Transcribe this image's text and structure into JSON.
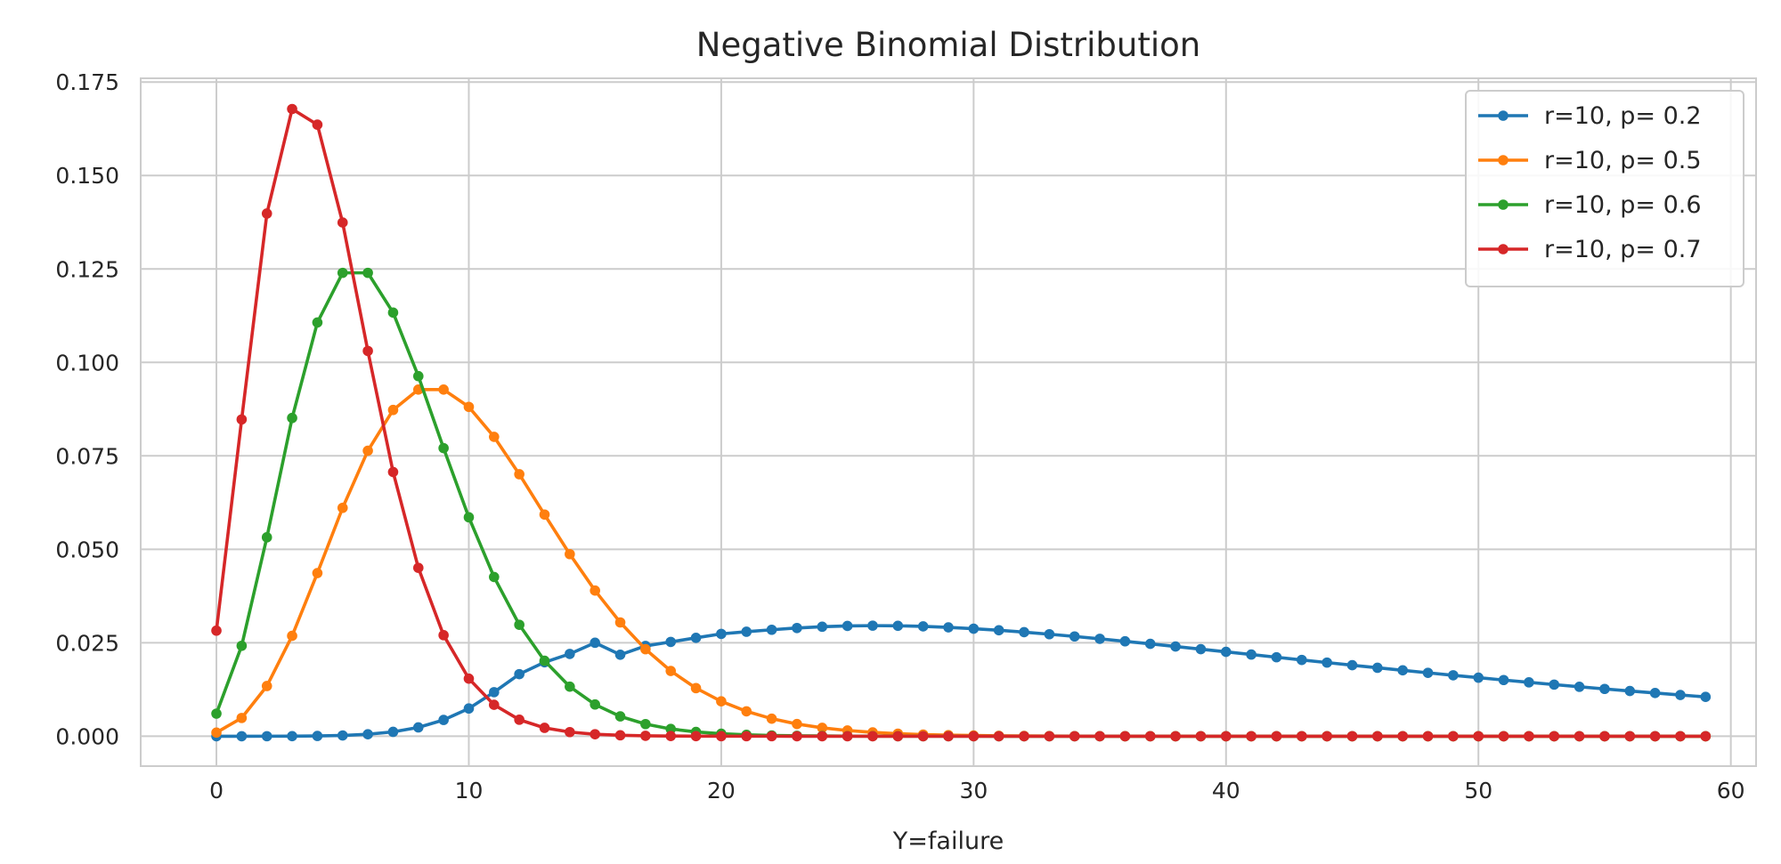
{
  "chart_data": {
    "type": "line",
    "title": "Negative Binomial Distribution",
    "xlabel": "Y=failure",
    "ylabel": "",
    "xlim": [
      -3,
      61
    ],
    "ylim": [
      -0.008,
      0.176
    ],
    "xticks": [
      0,
      10,
      20,
      30,
      40,
      50,
      60
    ],
    "xtick_labels": [
      "0",
      "10",
      "20",
      "30",
      "40",
      "50",
      "60"
    ],
    "yticks": [
      0,
      0.025,
      0.05,
      0.075,
      0.1,
      0.125,
      0.15,
      0.175
    ],
    "ytick_labels": [
      "0.000",
      "0.025",
      "0.050",
      "0.075",
      "0.100",
      "0.125",
      "0.150",
      "0.175"
    ],
    "grid": true,
    "legend_position": "top-right",
    "marker": "circle",
    "x": [
      0,
      1,
      2,
      3,
      4,
      5,
      6,
      7,
      8,
      9,
      10,
      11,
      12,
      13,
      14,
      15,
      16,
      17,
      18,
      19,
      20,
      21,
      22,
      23,
      24,
      25,
      26,
      27,
      28,
      29,
      30,
      31,
      32,
      33,
      34,
      35,
      36,
      37,
      38,
      39,
      40,
      41,
      42,
      43,
      44,
      45,
      46,
      47,
      48,
      49,
      50,
      51,
      52,
      53,
      54,
      55,
      56,
      57,
      58,
      59
    ],
    "series": [
      {
        "name": "r=10, p= 0.2",
        "color": "#1f77b4",
        "values": [
          1e-07,
          8e-07,
          4.6e-06,
          2.02e-05,
          7.05e-05,
          0.0002064,
          0.0005227,
          0.00117,
          0.002362,
          0.004355,
          0.007417,
          0.011787,
          0.016598,
          0.019784,
          0.022019,
          0.025,
          0.0218,
          0.02415,
          0.02523,
          0.02632,
          0.02738,
          0.02795,
          0.02848,
          0.02895,
          0.02929,
          0.0295,
          0.02958,
          0.02954,
          0.02938,
          0.02912,
          0.02877,
          0.02834,
          0.02784,
          0.02729,
          0.02669,
          0.02606,
          0.02539,
          0.02471,
          0.024,
          0.02329,
          0.02257,
          0.02185,
          0.02113,
          0.02041,
          0.0197,
          0.019,
          0.01831,
          0.01763,
          0.01696,
          0.0163,
          0.01566,
          0.01503,
          0.01441,
          0.01381,
          0.01322,
          0.01265,
          0.0121,
          0.01156,
          0.01103,
          0.01052
        ]
      },
      {
        "name": "r=10, p= 0.5",
        "color": "#ff7f0e",
        "values": [
          0.000977,
          0.004883,
          0.013428,
          0.026855,
          0.04364,
          0.061096,
          0.07637,
          0.08728,
          0.092735,
          0.092735,
          0.088099,
          0.08009,
          0.070079,
          0.059298,
          0.048709,
          0.038967,
          0.030443,
          0.023281,
          0.017461,
          0.012867,
          0.009328,
          0.006663,
          0.004694,
          0.003265,
          0.002245,
          0.001526,
          0.001027,
          0.000685,
          0.000453,
          0.000297,
          0.000193,
          0.000125,
          8e-05,
          5.1e-05,
          3.2e-05,
          2e-05,
          1.3e-05,
          8e-06,
          5e-06,
          3e-06,
          2e-06,
          1e-06,
          1e-06,
          0,
          0,
          0,
          0,
          0,
          0,
          0,
          0,
          0,
          0,
          0,
          0,
          0,
          0,
          0,
          0,
          0
        ]
      },
      {
        "name": "r=10, p= 0.6",
        "color": "#2ca02c",
        "values": [
          0.006047,
          0.024186,
          0.05321,
          0.085136,
          0.110677,
          0.123958,
          0.123958,
          0.113324,
          0.096326,
          0.077061,
          0.058566,
          0.042594,
          0.029815,
          0.020182,
          0.013262,
          0.008488,
          0.005305,
          0.003245,
          0.001947,
          0.001148,
          0.000666,
          0.000381,
          0.000215,
          0.00012,
          6.6e-05,
          3.6e-05,
          1.9e-05,
          1e-05,
          6e-06,
          3e-06,
          2e-06,
          1e-06,
          0,
          0,
          0,
          0,
          0,
          0,
          0,
          0,
          0,
          0,
          0,
          0,
          0,
          0,
          0,
          0,
          0,
          0,
          0,
          0,
          0,
          0,
          0,
          0,
          0,
          0,
          0,
          0
        ]
      },
      {
        "name": "r=10, p= 0.7",
        "color": "#d62728",
        "values": [
          0.028248,
          0.084743,
          0.139826,
          0.167791,
          0.163596,
          0.13742,
          0.103065,
          0.070679,
          0.045051,
          0.02703,
          0.015406,
          0.008408,
          0.004414,
          0.002241,
          0.001104,
          0.00053,
          0.000248,
          0.000114,
          5.1e-05,
          2.3e-05,
          1e-05,
          4e-06,
          2e-06,
          1e-06,
          0,
          0,
          0,
          0,
          0,
          0,
          0,
          0,
          0,
          0,
          0,
          0,
          0,
          0,
          0,
          0,
          0,
          0,
          0,
          0,
          0,
          0,
          0,
          0,
          0,
          0,
          0,
          0,
          0,
          0,
          0,
          0,
          0,
          0,
          0,
          0
        ]
      }
    ]
  }
}
